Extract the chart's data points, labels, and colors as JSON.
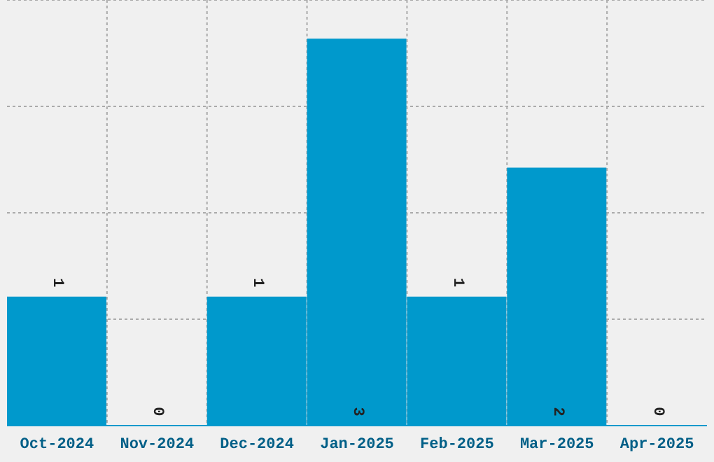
{
  "chart_data": {
    "type": "bar",
    "categories": [
      "Oct-2024",
      "Nov-2024",
      "Dec-2024",
      "Jan-2025",
      "Feb-2025",
      "Mar-2025",
      "Apr-2025"
    ],
    "values": [
      1,
      0,
      1,
      3,
      1,
      2,
      0
    ],
    "color": "#0099cc",
    "data_labels": true,
    "grid": true,
    "tick_labels": "x",
    "ylim": [
      0,
      3.3
    ],
    "yticks": [
      {
        "value": 0.825,
        "label": null
      },
      {
        "value": 1.65,
        "label": null
      },
      {
        "value": 2.475,
        "label": null
      },
      {
        "value": 3.3,
        "label": null
      }
    ]
  }
}
